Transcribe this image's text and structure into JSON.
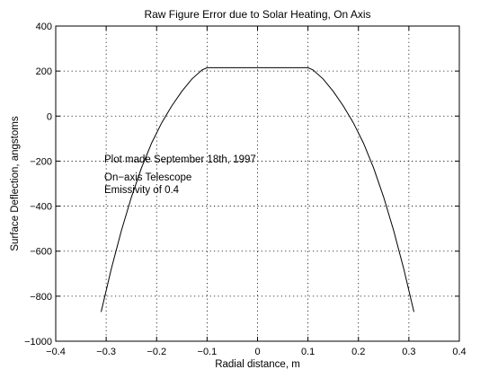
{
  "chart_data": {
    "type": "line",
    "title": "Raw Figure Error due to Solar Heating, On Axis",
    "xlabel": "Radial distance, m",
    "ylabel": "Surface Deflection, angstoms",
    "xlim": [
      -0.4,
      0.4
    ],
    "ylim": [
      -1000,
      400
    ],
    "xticks": [
      -0.4,
      -0.3,
      -0.2,
      -0.1,
      0,
      0.1,
      0.2,
      0.3,
      0.4
    ],
    "xtick_labels": [
      "−0.4",
      "−0.3",
      "−0.2",
      "−0.1",
      "0",
      "0.1",
      "0.2",
      "0.3",
      "0.4"
    ],
    "yticks": [
      -1000,
      -800,
      -600,
      -400,
      -200,
      0,
      200,
      400
    ],
    "ytick_labels": [
      "−1000",
      "−800",
      "−600",
      "−400",
      "−200",
      "0",
      "200",
      "400"
    ],
    "grid": true,
    "series": [
      {
        "x": [
          -0.31,
          -0.29,
          -0.27,
          -0.25,
          -0.23,
          -0.21,
          -0.19,
          -0.17,
          -0.15,
          -0.13,
          -0.11,
          -0.1,
          0.1,
          0.11,
          0.13,
          0.15,
          0.17,
          0.19,
          0.21,
          0.23,
          0.25,
          0.27,
          0.29,
          0.31
        ],
        "y": [
          -870,
          -680,
          -510,
          -360,
          -230,
          -120,
          -30,
          45,
          110,
          165,
          205,
          215,
          215,
          205,
          165,
          110,
          45,
          -30,
          -120,
          -230,
          -360,
          -510,
          -680,
          -870
        ]
      }
    ],
    "annotations": [
      "Plot made September 18th, 1997",
      "On−axis Telescope",
      "Emissivity of 0.4"
    ]
  }
}
